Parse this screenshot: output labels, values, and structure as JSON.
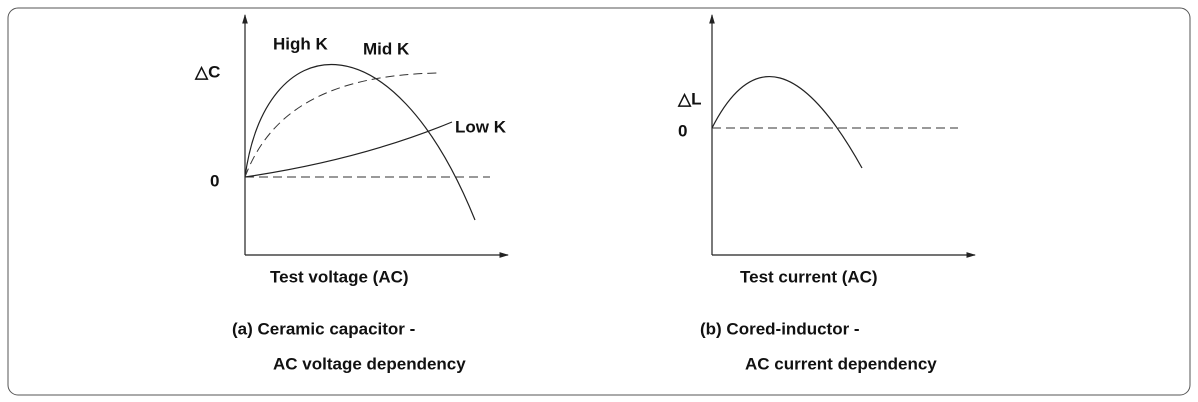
{
  "panels": [
    {
      "y_label": "△C",
      "origin_label": "0",
      "x_label": "Test voltage (AC)",
      "curves": [
        "High K",
        "Mid K",
        "Low K"
      ],
      "caption": [
        "(a) Ceramic capacitor -",
        "AC voltage dependency"
      ]
    },
    {
      "y_label": "△L",
      "origin_label": "0",
      "x_label": "Test current (AC)",
      "caption": [
        "(b) Cored-inductor -",
        "AC current dependency"
      ]
    }
  ]
}
